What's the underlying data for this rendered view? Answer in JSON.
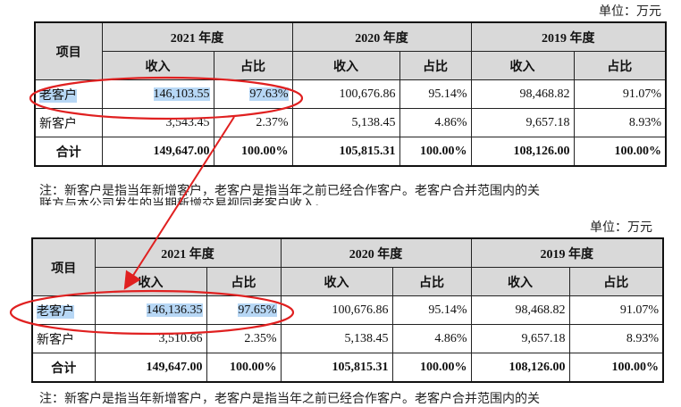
{
  "unit_label": "单位：万元",
  "tables": [
    {
      "item_header": "项目",
      "years": [
        "2021 年度",
        "2020 年度",
        "2019 年度"
      ],
      "sub_headers": [
        "收入",
        "占比",
        "收入",
        "占比",
        "收入",
        "占比"
      ],
      "rows": [
        {
          "label": "老客户",
          "values": [
            "146,103.55",
            "97.63%",
            "100,676.86",
            "95.14%",
            "98,468.82",
            "91.07%"
          ]
        },
        {
          "label": "新客户",
          "values": [
            "3,543.45",
            "2.37%",
            "5,138.45",
            "4.86%",
            "9,657.18",
            "8.93%"
          ]
        },
        {
          "label": "合计",
          "values": [
            "149,647.00",
            "100.00%",
            "105,815.31",
            "100.00%",
            "108,126.00",
            "100.00%"
          ]
        }
      ],
      "note": "注：新客户是指当年新增客户，老客户是指当年之前已经合作客户。老客户合并范围内的关",
      "note_cut": "联方与本公司发生的当期新增交易视同老客户收入。"
    },
    {
      "item_header": "项目",
      "years": [
        "2021 年度",
        "2020 年度",
        "2019 年度"
      ],
      "sub_headers": [
        "收入",
        "占比",
        "收入",
        "占比",
        "收入",
        "占比"
      ],
      "rows": [
        {
          "label": "老客户",
          "values": [
            "146,136.35",
            "97.65%",
            "100,676.86",
            "95.14%",
            "98,468.82",
            "91.07%"
          ]
        },
        {
          "label": "新客户",
          "values": [
            "3,510.66",
            "2.35%",
            "5,138.45",
            "4.86%",
            "9,657.18",
            "8.93%"
          ]
        },
        {
          "label": "合计",
          "values": [
            "149,647.00",
            "100.00%",
            "105,815.31",
            "100.00%",
            "108,126.00",
            "100.00%"
          ]
        }
      ],
      "note": "注：新客户是指当年新增客户，老客户是指当年之前已经合作客户。老客户合并范围内的关"
    }
  ],
  "annotation_color": "#e02020",
  "highlight_color": "#b7d7f5"
}
